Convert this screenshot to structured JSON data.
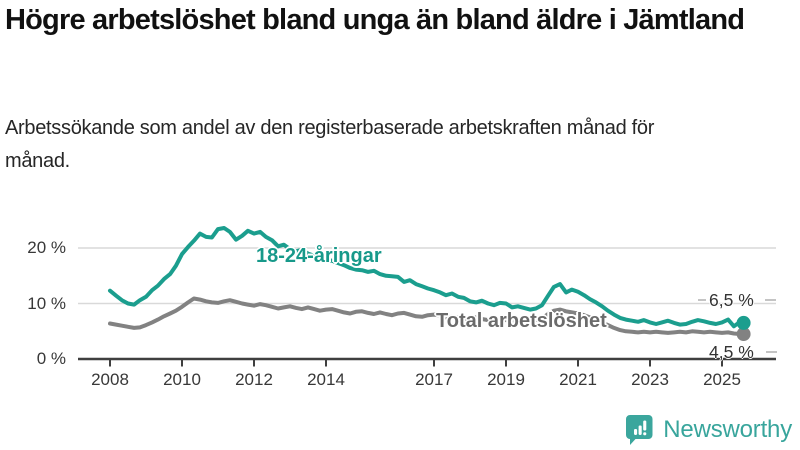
{
  "page": {
    "title": "Högre arbetslöshet bland unga än bland äldre i Jämtland",
    "subtitle": "Arbetssökande som andel av den registerbaserade arbetskraften månad för månad."
  },
  "branding": {
    "name": "Newsworthy",
    "color": "#38a59c"
  },
  "colors": {
    "youth_line": "#1b9e8e",
    "youth_label": "#17998a",
    "total_line": "#828282",
    "total_label": "#6b6b6b",
    "grid": "#d9d9d9",
    "axis": "#3f3f3f",
    "tick_text": "#383838",
    "leader_dash": "#b0b0b0"
  },
  "chart_data": {
    "type": "line",
    "title": "Högre arbetslöshet bland unga än bland äldre i Jämtland",
    "subtitle": "Arbetssökande som andel av den registerbaserade arbetskraften månad för månad.",
    "xlabel": "",
    "ylabel": "",
    "unit": "%",
    "grid": "horizontal",
    "legend": "inline-labels",
    "xlim": [
      2007.1,
      2026.5
    ],
    "ylim": [
      0,
      24
    ],
    "x_tick_years": [
      2008,
      2010,
      2012,
      2014,
      2017,
      2019,
      2021,
      2023,
      2025
    ],
    "y_ticks": [
      {
        "value": 0,
        "label": "0 %"
      },
      {
        "value": 10,
        "label": "10 %"
      },
      {
        "value": 20,
        "label": "20 %"
      }
    ],
    "series": [
      {
        "name": "18-24-åringar",
        "end_label": "6,5 %",
        "end_value": 6.5,
        "points": [
          [
            2008.0,
            12.3
          ],
          [
            2008.17,
            11.4
          ],
          [
            2008.33,
            10.6
          ],
          [
            2008.5,
            10.0
          ],
          [
            2008.67,
            9.8
          ],
          [
            2008.83,
            10.6
          ],
          [
            2009.0,
            11.2
          ],
          [
            2009.17,
            12.4
          ],
          [
            2009.33,
            13.2
          ],
          [
            2009.5,
            14.4
          ],
          [
            2009.67,
            15.3
          ],
          [
            2009.83,
            16.8
          ],
          [
            2010.0,
            18.9
          ],
          [
            2010.17,
            20.2
          ],
          [
            2010.33,
            21.3
          ],
          [
            2010.5,
            22.6
          ],
          [
            2010.67,
            22.0
          ],
          [
            2010.83,
            21.9
          ],
          [
            2011.0,
            23.4
          ],
          [
            2011.17,
            23.6
          ],
          [
            2011.33,
            22.9
          ],
          [
            2011.5,
            21.5
          ],
          [
            2011.67,
            22.2
          ],
          [
            2011.83,
            23.1
          ],
          [
            2012.0,
            22.6
          ],
          [
            2012.17,
            22.9
          ],
          [
            2012.33,
            22.0
          ],
          [
            2012.5,
            21.4
          ],
          [
            2012.67,
            20.3
          ],
          [
            2012.83,
            20.6
          ],
          [
            2013.0,
            19.8
          ],
          [
            2013.17,
            19.4
          ],
          [
            2013.33,
            19.7
          ],
          [
            2013.5,
            19.0
          ],
          [
            2013.67,
            18.6
          ],
          [
            2013.83,
            18.3
          ],
          [
            2014.0,
            18.0
          ],
          [
            2014.17,
            17.7
          ],
          [
            2014.33,
            17.3
          ],
          [
            2014.5,
            16.9
          ],
          [
            2014.67,
            16.4
          ],
          [
            2014.83,
            16.1
          ],
          [
            2015.0,
            16.0
          ],
          [
            2015.17,
            15.7
          ],
          [
            2015.33,
            15.9
          ],
          [
            2015.5,
            15.3
          ],
          [
            2015.67,
            15.0
          ],
          [
            2015.83,
            14.9
          ],
          [
            2016.0,
            14.8
          ],
          [
            2016.17,
            13.9
          ],
          [
            2016.33,
            14.2
          ],
          [
            2016.5,
            13.5
          ],
          [
            2016.67,
            13.1
          ],
          [
            2016.83,
            12.7
          ],
          [
            2017.0,
            12.4
          ],
          [
            2017.17,
            12.0
          ],
          [
            2017.33,
            11.5
          ],
          [
            2017.5,
            11.8
          ],
          [
            2017.67,
            11.2
          ],
          [
            2017.83,
            11.0
          ],
          [
            2018.0,
            10.4
          ],
          [
            2018.17,
            10.2
          ],
          [
            2018.33,
            10.5
          ],
          [
            2018.5,
            10.0
          ],
          [
            2018.67,
            9.7
          ],
          [
            2018.83,
            10.1
          ],
          [
            2019.0,
            10.0
          ],
          [
            2019.17,
            9.3
          ],
          [
            2019.33,
            9.5
          ],
          [
            2019.5,
            9.2
          ],
          [
            2019.67,
            8.9
          ],
          [
            2019.83,
            9.1
          ],
          [
            2020.0,
            9.7
          ],
          [
            2020.17,
            11.4
          ],
          [
            2020.33,
            13.0
          ],
          [
            2020.5,
            13.5
          ],
          [
            2020.67,
            12.0
          ],
          [
            2020.83,
            12.5
          ],
          [
            2021.0,
            12.1
          ],
          [
            2021.17,
            11.5
          ],
          [
            2021.33,
            10.8
          ],
          [
            2021.5,
            10.2
          ],
          [
            2021.67,
            9.5
          ],
          [
            2021.83,
            8.7
          ],
          [
            2022.0,
            8.0
          ],
          [
            2022.17,
            7.4
          ],
          [
            2022.33,
            7.1
          ],
          [
            2022.5,
            6.9
          ],
          [
            2022.67,
            6.7
          ],
          [
            2022.83,
            7.0
          ],
          [
            2023.0,
            6.6
          ],
          [
            2023.17,
            6.3
          ],
          [
            2023.33,
            6.6
          ],
          [
            2023.5,
            6.9
          ],
          [
            2023.67,
            6.5
          ],
          [
            2023.83,
            6.2
          ],
          [
            2024.0,
            6.3
          ],
          [
            2024.17,
            6.7
          ],
          [
            2024.33,
            7.0
          ],
          [
            2024.5,
            6.8
          ],
          [
            2024.67,
            6.5
          ],
          [
            2024.83,
            6.3
          ],
          [
            2025.0,
            6.6
          ],
          [
            2025.17,
            7.1
          ],
          [
            2025.33,
            5.9
          ],
          [
            2025.5,
            6.7
          ],
          [
            2025.6,
            6.5
          ]
        ]
      },
      {
        "name": "Total arbetslöshet",
        "end_label": "4,5 %",
        "end_value": 4.5,
        "points": [
          [
            2008.0,
            6.4
          ],
          [
            2008.17,
            6.2
          ],
          [
            2008.33,
            6.0
          ],
          [
            2008.5,
            5.8
          ],
          [
            2008.67,
            5.6
          ],
          [
            2008.83,
            5.7
          ],
          [
            2009.0,
            6.1
          ],
          [
            2009.17,
            6.6
          ],
          [
            2009.33,
            7.1
          ],
          [
            2009.5,
            7.7
          ],
          [
            2009.67,
            8.2
          ],
          [
            2009.83,
            8.7
          ],
          [
            2010.0,
            9.4
          ],
          [
            2010.17,
            10.2
          ],
          [
            2010.33,
            10.9
          ],
          [
            2010.5,
            10.7
          ],
          [
            2010.67,
            10.4
          ],
          [
            2010.83,
            10.2
          ],
          [
            2011.0,
            10.1
          ],
          [
            2011.17,
            10.4
          ],
          [
            2011.33,
            10.6
          ],
          [
            2011.5,
            10.3
          ],
          [
            2011.67,
            10.0
          ],
          [
            2011.83,
            9.8
          ],
          [
            2012.0,
            9.6
          ],
          [
            2012.17,
            9.9
          ],
          [
            2012.33,
            9.7
          ],
          [
            2012.5,
            9.4
          ],
          [
            2012.67,
            9.1
          ],
          [
            2012.83,
            9.3
          ],
          [
            2013.0,
            9.5
          ],
          [
            2013.17,
            9.2
          ],
          [
            2013.33,
            9.0
          ],
          [
            2013.5,
            9.3
          ],
          [
            2013.67,
            9.0
          ],
          [
            2013.83,
            8.7
          ],
          [
            2014.0,
            8.9
          ],
          [
            2014.17,
            9.0
          ],
          [
            2014.33,
            8.7
          ],
          [
            2014.5,
            8.4
          ],
          [
            2014.67,
            8.2
          ],
          [
            2014.83,
            8.5
          ],
          [
            2015.0,
            8.6
          ],
          [
            2015.17,
            8.3
          ],
          [
            2015.33,
            8.1
          ],
          [
            2015.5,
            8.4
          ],
          [
            2015.67,
            8.1
          ],
          [
            2015.83,
            7.9
          ],
          [
            2016.0,
            8.2
          ],
          [
            2016.17,
            8.3
          ],
          [
            2016.33,
            8.0
          ],
          [
            2016.5,
            7.7
          ],
          [
            2016.67,
            7.6
          ],
          [
            2016.83,
            7.9
          ],
          [
            2017.0,
            8.0
          ],
          [
            2017.17,
            7.8
          ],
          [
            2017.33,
            7.5
          ],
          [
            2017.5,
            7.7
          ],
          [
            2017.67,
            7.4
          ],
          [
            2017.83,
            7.2
          ],
          [
            2018.0,
            7.4
          ],
          [
            2018.17,
            7.5
          ],
          [
            2018.33,
            7.2
          ],
          [
            2018.5,
            7.0
          ],
          [
            2018.67,
            6.9
          ],
          [
            2018.83,
            7.1
          ],
          [
            2019.0,
            7.0
          ],
          [
            2019.17,
            6.9
          ],
          [
            2019.33,
            7.1
          ],
          [
            2019.5,
            6.9
          ],
          [
            2019.67,
            6.8
          ],
          [
            2019.83,
            7.0
          ],
          [
            2020.0,
            7.3
          ],
          [
            2020.17,
            8.1
          ],
          [
            2020.33,
            8.7
          ],
          [
            2020.5,
            8.9
          ],
          [
            2020.67,
            8.6
          ],
          [
            2020.83,
            8.4
          ],
          [
            2021.0,
            8.2
          ],
          [
            2021.17,
            7.9
          ],
          [
            2021.33,
            7.5
          ],
          [
            2021.5,
            7.1
          ],
          [
            2021.67,
            6.6
          ],
          [
            2021.83,
            6.1
          ],
          [
            2022.0,
            5.6
          ],
          [
            2022.17,
            5.2
          ],
          [
            2022.33,
            5.0
          ],
          [
            2022.5,
            4.9
          ],
          [
            2022.67,
            4.8
          ],
          [
            2022.83,
            4.9
          ],
          [
            2023.0,
            4.8
          ],
          [
            2023.17,
            4.9
          ],
          [
            2023.33,
            4.8
          ],
          [
            2023.5,
            4.7
          ],
          [
            2023.67,
            4.8
          ],
          [
            2023.83,
            4.9
          ],
          [
            2024.0,
            4.8
          ],
          [
            2024.17,
            5.0
          ],
          [
            2024.33,
            4.9
          ],
          [
            2024.5,
            4.8
          ],
          [
            2024.67,
            4.9
          ],
          [
            2024.83,
            4.8
          ],
          [
            2025.0,
            4.7
          ],
          [
            2025.17,
            4.8
          ],
          [
            2025.33,
            4.6
          ],
          [
            2025.5,
            4.5
          ],
          [
            2025.6,
            4.5
          ]
        ]
      }
    ]
  }
}
